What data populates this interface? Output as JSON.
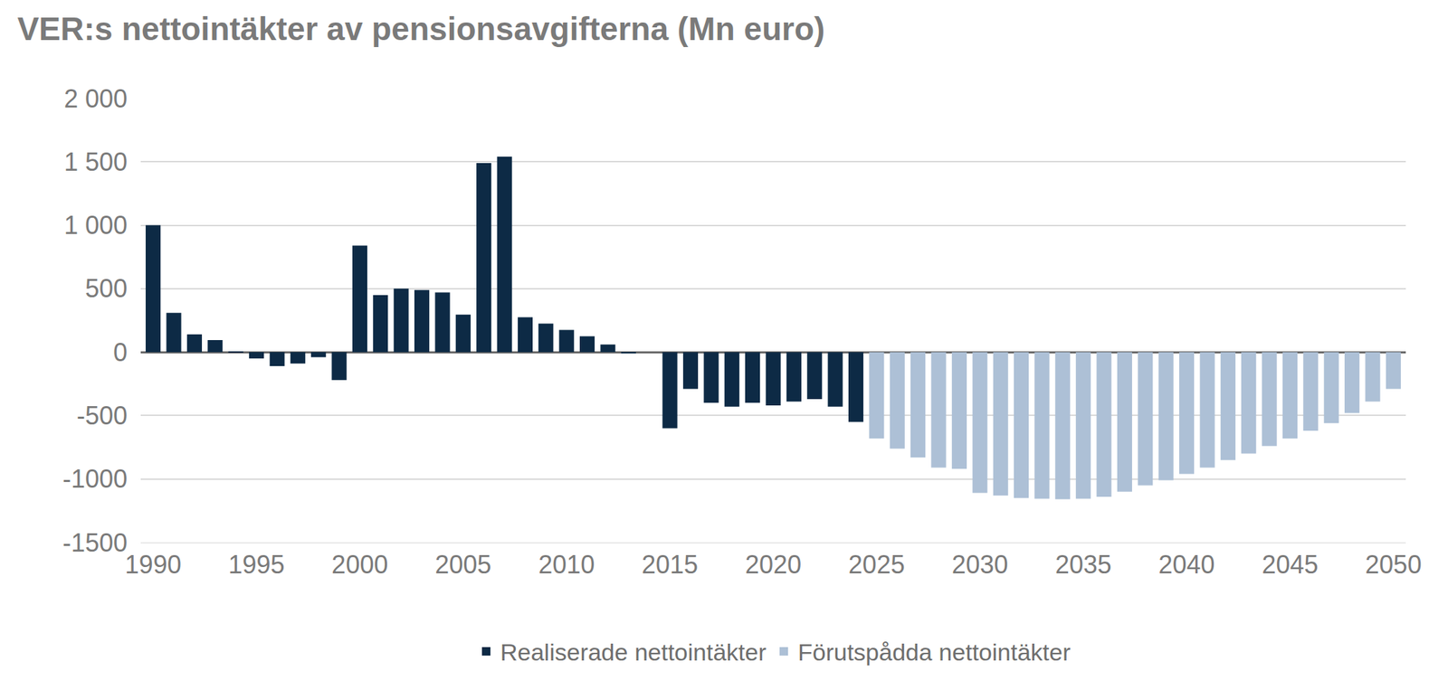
{
  "chart_data": {
    "type": "bar",
    "title": "VER:s nettointäkter av pensionsavgifterna (Mn euro)",
    "x": [
      1990,
      1991,
      1992,
      1993,
      1994,
      1995,
      1996,
      1997,
      1998,
      1999,
      2000,
      2001,
      2002,
      2003,
      2004,
      2005,
      2006,
      2007,
      2008,
      2009,
      2010,
      2011,
      2012,
      2013,
      2014,
      2015,
      2016,
      2017,
      2018,
      2019,
      2020,
      2021,
      2022,
      2023,
      2024,
      2025,
      2026,
      2027,
      2028,
      2029,
      2030,
      2031,
      2032,
      2033,
      2034,
      2035,
      2036,
      2037,
      2038,
      2039,
      2040,
      2041,
      2042,
      2043,
      2044,
      2045,
      2046,
      2047,
      2048,
      2049,
      2050
    ],
    "series": [
      {
        "name": "Realiserade nettointäkter",
        "color": "#0d2a45",
        "values": [
          1000,
          310,
          140,
          95,
          5,
          -50,
          -110,
          -90,
          -40,
          -220,
          840,
          450,
          500,
          490,
          470,
          295,
          1490,
          1540,
          275,
          225,
          175,
          125,
          60,
          -10,
          0,
          -600,
          -290,
          -400,
          -430,
          -400,
          -420,
          -390,
          -370,
          -430,
          -550,
          null,
          null,
          null,
          null,
          null,
          null,
          null,
          null,
          null,
          null,
          null,
          null,
          null,
          null,
          null,
          null,
          null,
          null,
          null,
          null,
          null,
          null,
          null,
          null,
          null,
          null
        ]
      },
      {
        "name": "Förutspådda nettointäkter",
        "color": "#adc0d6",
        "values": [
          null,
          null,
          null,
          null,
          null,
          null,
          null,
          null,
          null,
          null,
          null,
          null,
          null,
          null,
          null,
          null,
          null,
          null,
          null,
          null,
          null,
          null,
          null,
          null,
          null,
          null,
          null,
          null,
          null,
          null,
          null,
          null,
          null,
          null,
          null,
          -680,
          -760,
          -830,
          -910,
          -920,
          -1110,
          -1130,
          -1150,
          -1155,
          -1160,
          -1155,
          -1140,
          -1100,
          -1050,
          -1010,
          -960,
          -910,
          -850,
          -800,
          -740,
          -680,
          -620,
          -560,
          -480,
          -390,
          -290
        ]
      }
    ],
    "xlim": [
      1989.4,
      2050.6
    ],
    "xticks": [
      1990,
      1995,
      2000,
      2005,
      2010,
      2015,
      2020,
      2025,
      2030,
      2035,
      2040,
      2045,
      2050
    ],
    "ylim": [
      -1500,
      2000
    ],
    "yticks": [
      {
        "value": -1500,
        "label": "-1500"
      },
      {
        "value": -1000,
        "label": "-1000"
      },
      -500,
      0,
      500,
      {
        "value": 1000,
        "label": "1 000"
      },
      {
        "value": 1500,
        "label": "1 500"
      },
      {
        "value": 2000,
        "label": "2 000"
      }
    ],
    "grid": true,
    "legend": "bottom"
  }
}
